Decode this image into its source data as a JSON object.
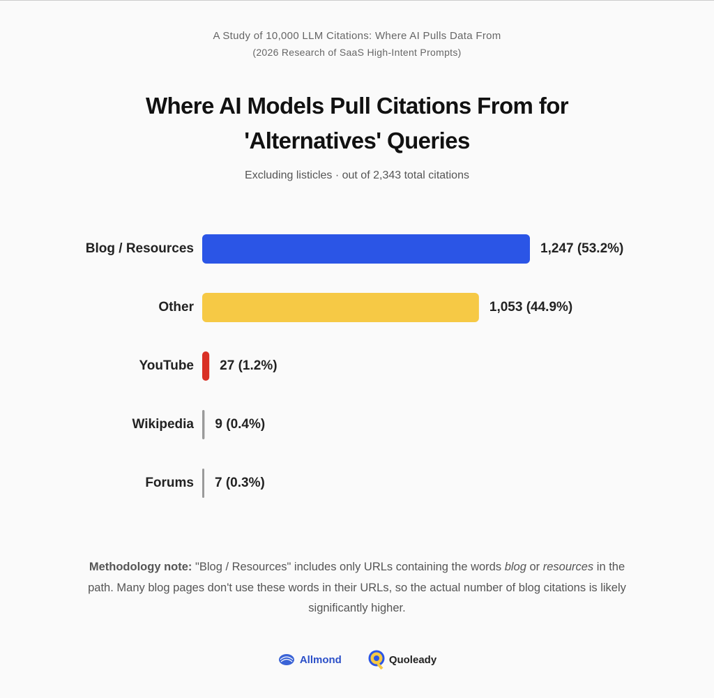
{
  "chart_data": {
    "type": "bar",
    "orientation": "horizontal",
    "header": "A Study of 10,000 LLM Citations: Where AI Pulls Data From",
    "header_sub": "(2026 Research of SaaS High-Intent Prompts)",
    "title": "Where AI Models Pull Citations From for 'Alternatives' Queries",
    "subtitle": "Excluding listicles · out of 2,343 total citations",
    "categories": [
      "Blog / Resources",
      "Other",
      "YouTube",
      "Wikipedia",
      "Forums"
    ],
    "values": [
      1247,
      1053,
      27,
      9,
      7
    ],
    "value_labels": [
      "1,247 (53.2%)",
      "1,053 (44.9%)",
      "27 (1.2%)",
      "9 (0.4%)",
      "7 (0.3%)"
    ],
    "colors": [
      "#2b55e6",
      "#f6c945",
      "#d93025",
      "#9a9a9a",
      "#9a9a9a"
    ],
    "note": [
      {
        "text": "Methodology note:",
        "bold": true
      },
      {
        "text": " \"Blog / Resources\" includes only URLs containing the words "
      },
      {
        "text": "blog",
        "italic": true
      },
      {
        "text": " or "
      },
      {
        "text": "resources",
        "italic": true
      },
      {
        "text": " in the path. Many blog pages don't use these words in their URLs, so the actual number of blog citations is likely significantly higher."
      }
    ],
    "logos": [
      "Allmond",
      "Quoleady"
    ]
  }
}
